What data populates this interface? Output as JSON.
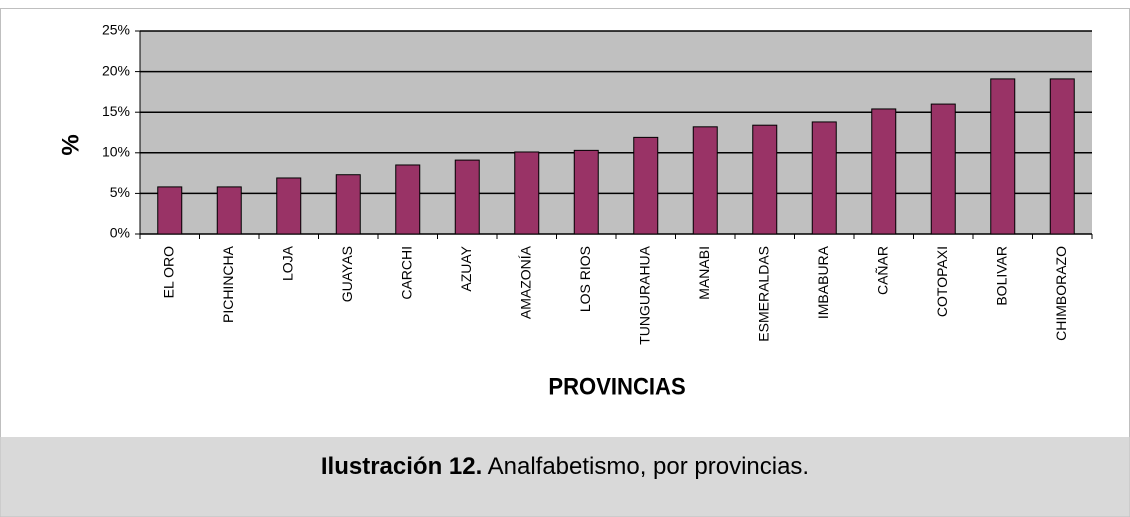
{
  "chart_data": {
    "type": "bar",
    "x_label": "PROVINCIAS",
    "y_label": "%",
    "categories": [
      "EL ORO",
      "PICHINCHA",
      "LOJA",
      "GUAYAS",
      "CARCHI",
      "AZUAY",
      "AMAZONÍA",
      "LOS RIOS",
      "TUNGURAHUA",
      "MANABI",
      "ESMERALDAS",
      "IMBABURA",
      "CAÑAR",
      "COTOPAXI",
      "BOLIVAR",
      "CHIMBORAZO"
    ],
    "values": [
      5.8,
      5.8,
      6.9,
      7.3,
      8.5,
      9.1,
      10.1,
      10.3,
      11.9,
      13.2,
      13.4,
      13.8,
      15.4,
      16.0,
      19.1,
      19.1
    ],
    "color": "#993366",
    "ylim": [
      0,
      25
    ],
    "yticks": [
      {
        "value": 0,
        "label": "0%"
      },
      {
        "value": 5,
        "label": "5%"
      },
      {
        "value": 10,
        "label": "10%"
      },
      {
        "value": 15,
        "label": "15%"
      },
      {
        "value": 20,
        "label": "20%"
      },
      {
        "value": 25,
        "label": "25%"
      }
    ],
    "grid": true
  },
  "caption": {
    "label": "Ilustración 12.",
    "text": "Analfabetismo, por provincias."
  }
}
